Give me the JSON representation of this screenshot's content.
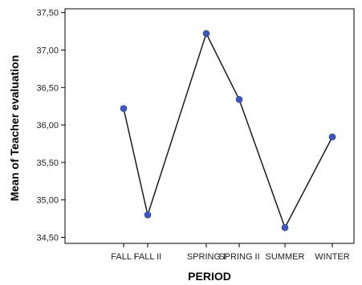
{
  "chart_data": {
    "type": "line",
    "title": "",
    "xlabel": "PERIOD",
    "ylabel": "Mean of Teacher evaluation",
    "categories": [
      "FALL I",
      "FALL II",
      "SPRING I",
      "SPRING II",
      "SUMMER",
      "WINTER"
    ],
    "series": [
      {
        "values": [
          36.22,
          34.8,
          37.22,
          36.34,
          34.63,
          35.84
        ]
      }
    ],
    "y_ticks": [
      "34,50",
      "35,00",
      "35,50",
      "36,00",
      "36,50",
      "37,00",
      "37,50"
    ],
    "y_tick_values": [
      34.5,
      35.0,
      35.5,
      36.0,
      36.5,
      37.0,
      37.5
    ],
    "ylim": [
      34.42,
      37.55
    ],
    "grid": false,
    "legend": "none",
    "colors": {
      "line": "#1a1a1a",
      "marker": "#3b57c4",
      "axis": "#000000"
    }
  }
}
